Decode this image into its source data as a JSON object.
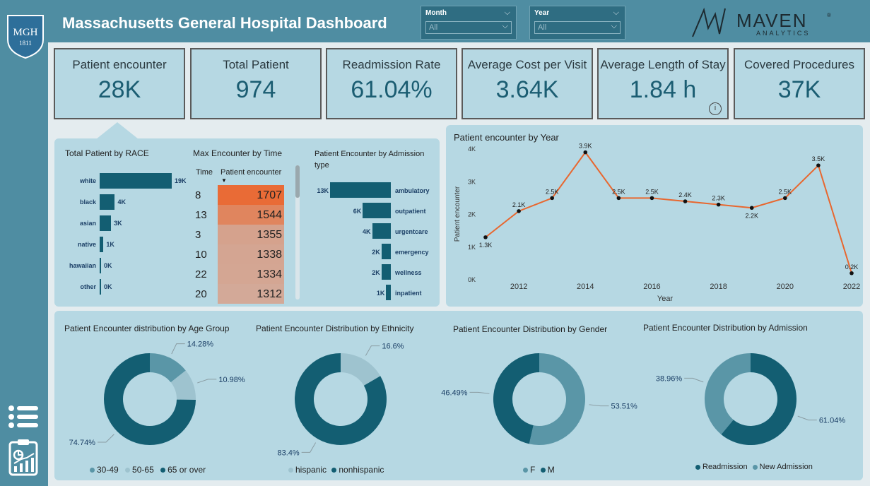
{
  "header": {
    "title": "Massachusetts General Hospital Dashboard",
    "logo": {
      "line1": "MGH",
      "line2": "1811"
    },
    "brand": {
      "name": "MAVEN",
      "sub": "ANALYTICS",
      "reg": "®"
    }
  },
  "filters": {
    "month": {
      "label": "Month",
      "value": "All"
    },
    "year": {
      "label": "Year",
      "value": "All"
    }
  },
  "kpis": [
    {
      "title": "Patient encounter",
      "value": "28K"
    },
    {
      "title": "Total Patient",
      "value": "974"
    },
    {
      "title": "Readmission Rate",
      "value": "61.04%"
    },
    {
      "title": "Average Cost per Visit",
      "value": "3.64K"
    },
    {
      "title": "Average Length of Stay",
      "value": "1.84 h"
    },
    {
      "title": "Covered Procedures",
      "value": "37K"
    }
  ],
  "kpi_info_icon": "i",
  "colors": {
    "accent": "#135e72",
    "line": "#e8672f",
    "light": "#5a96a7",
    "lighter": "#9ec3cf"
  },
  "chart_data": [
    {
      "type": "bar",
      "title": "Total Patient by RACE",
      "orientation": "horizontal",
      "categories": [
        "white",
        "black",
        "asian",
        "native",
        "hawaiian",
        "other"
      ],
      "values": [
        19000,
        4000,
        3000,
        1000,
        0,
        0
      ],
      "labels": [
        "19K",
        "4K",
        "3K",
        "1K",
        "0K",
        "0K"
      ]
    },
    {
      "type": "table",
      "title": "Max Encounter by Time",
      "columns": [
        "Time",
        "Patient encounter"
      ],
      "rows": [
        [
          "8",
          "1707"
        ],
        [
          "13",
          "1544"
        ],
        [
          "3",
          "1355"
        ],
        [
          "10",
          "1338"
        ],
        [
          "22",
          "1334"
        ],
        [
          "20",
          "1312"
        ]
      ],
      "values": [
        1707,
        1544,
        1355,
        1338,
        1334,
        1312
      ]
    },
    {
      "type": "bar",
      "title": "Patient Encounter by Admission type",
      "orientation": "horizontal",
      "categories": [
        "ambulatory",
        "outpatient",
        "urgentcare",
        "emergency",
        "wellness",
        "inpatient"
      ],
      "values": [
        13000,
        6000,
        4000,
        2000,
        2000,
        1000
      ],
      "labels": [
        "13K",
        "6K",
        "4K",
        "2K",
        "2K",
        "1K"
      ]
    },
    {
      "type": "line",
      "title": "Patient encounter by Year",
      "xlabel": "Year",
      "ylabel": "Patient encounter",
      "x": [
        2011,
        2012,
        2013,
        2014,
        2015,
        2016,
        2017,
        2018,
        2019,
        2020,
        2021,
        2022
      ],
      "y": [
        1300,
        2100,
        2500,
        3900,
        2500,
        2500,
        2400,
        2300,
        2200,
        2500,
        3500,
        200
      ],
      "point_labels": [
        "1.3K",
        "2.1K",
        "2.5K",
        "3.9K",
        "2.5K",
        "2.5K",
        "2.4K",
        "2.3K",
        "2.2K",
        "2.5K",
        "3.5K",
        "0.2K"
      ],
      "xticks": [
        "2012",
        "2014",
        "2016",
        "2018",
        "2020",
        "2022"
      ],
      "yticks": [
        "0K",
        "1K",
        "2K",
        "3K",
        "4K"
      ],
      "ylim": [
        0,
        4000
      ]
    },
    {
      "type": "pie",
      "title": "Patient Encounter distribution by Age Group",
      "categories": [
        "30-49",
        "50-65",
        "65 or over"
      ],
      "values": [
        14.28,
        10.98,
        74.74
      ],
      "labels": [
        "14.28%",
        "10.98%",
        "74.74%"
      ]
    },
    {
      "type": "pie",
      "title": "Patient Encounter Distribution by Ethnicity",
      "categories": [
        "hispanic",
        "nonhispanic"
      ],
      "values": [
        16.6,
        83.4
      ],
      "labels": [
        "16.6%",
        "83.4%"
      ]
    },
    {
      "type": "pie",
      "title": "Patient Encounter Distribution by Gender",
      "categories": [
        "F",
        "M"
      ],
      "values": [
        53.51,
        46.49
      ],
      "labels": [
        "53.51%",
        "46.49%"
      ]
    },
    {
      "type": "pie",
      "title": "Patient Encounter Distribution by Admission",
      "categories": [
        "Readmission",
        "New Admission"
      ],
      "values": [
        61.04,
        38.96
      ],
      "labels": [
        "61.04%",
        "38.96%"
      ]
    }
  ]
}
